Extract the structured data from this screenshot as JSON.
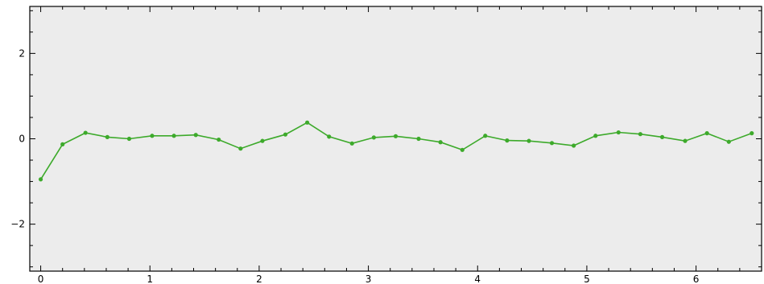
{
  "chart_data": {
    "type": "line",
    "title": "",
    "xlabel": "",
    "ylabel": "",
    "xlim": [
      -0.1,
      6.6
    ],
    "ylim": [
      -3.1,
      3.1
    ],
    "x_ticks": [
      0,
      1,
      2,
      3,
      4,
      5,
      6
    ],
    "y_ticks": [
      -2,
      0,
      2
    ],
    "grid": false,
    "colors": {
      "series": "#3daa2b",
      "background": "#ececec"
    },
    "series": [
      {
        "x": [
          0.0,
          0.2,
          0.41,
          0.61,
          0.81,
          1.02,
          1.22,
          1.42,
          1.63,
          1.83,
          2.03,
          2.24,
          2.44,
          2.64,
          2.85,
          3.05,
          3.25,
          3.46,
          3.66,
          3.86,
          4.07,
          4.27,
          4.47,
          4.68,
          4.88,
          5.08,
          5.29,
          5.49,
          5.69,
          5.9,
          6.1,
          6.3,
          6.51
        ],
        "y": [
          -0.95,
          -0.13,
          0.14,
          0.04,
          0.0,
          0.07,
          0.07,
          0.09,
          -0.02,
          -0.23,
          -0.05,
          0.1,
          0.38,
          0.05,
          -0.11,
          0.03,
          0.06,
          0.0,
          -0.08,
          -0.26,
          0.07,
          -0.04,
          -0.05,
          -0.1,
          -0.16,
          0.07,
          0.15,
          0.11,
          0.04,
          -0.05,
          0.13,
          -0.07,
          0.13
        ]
      }
    ]
  }
}
